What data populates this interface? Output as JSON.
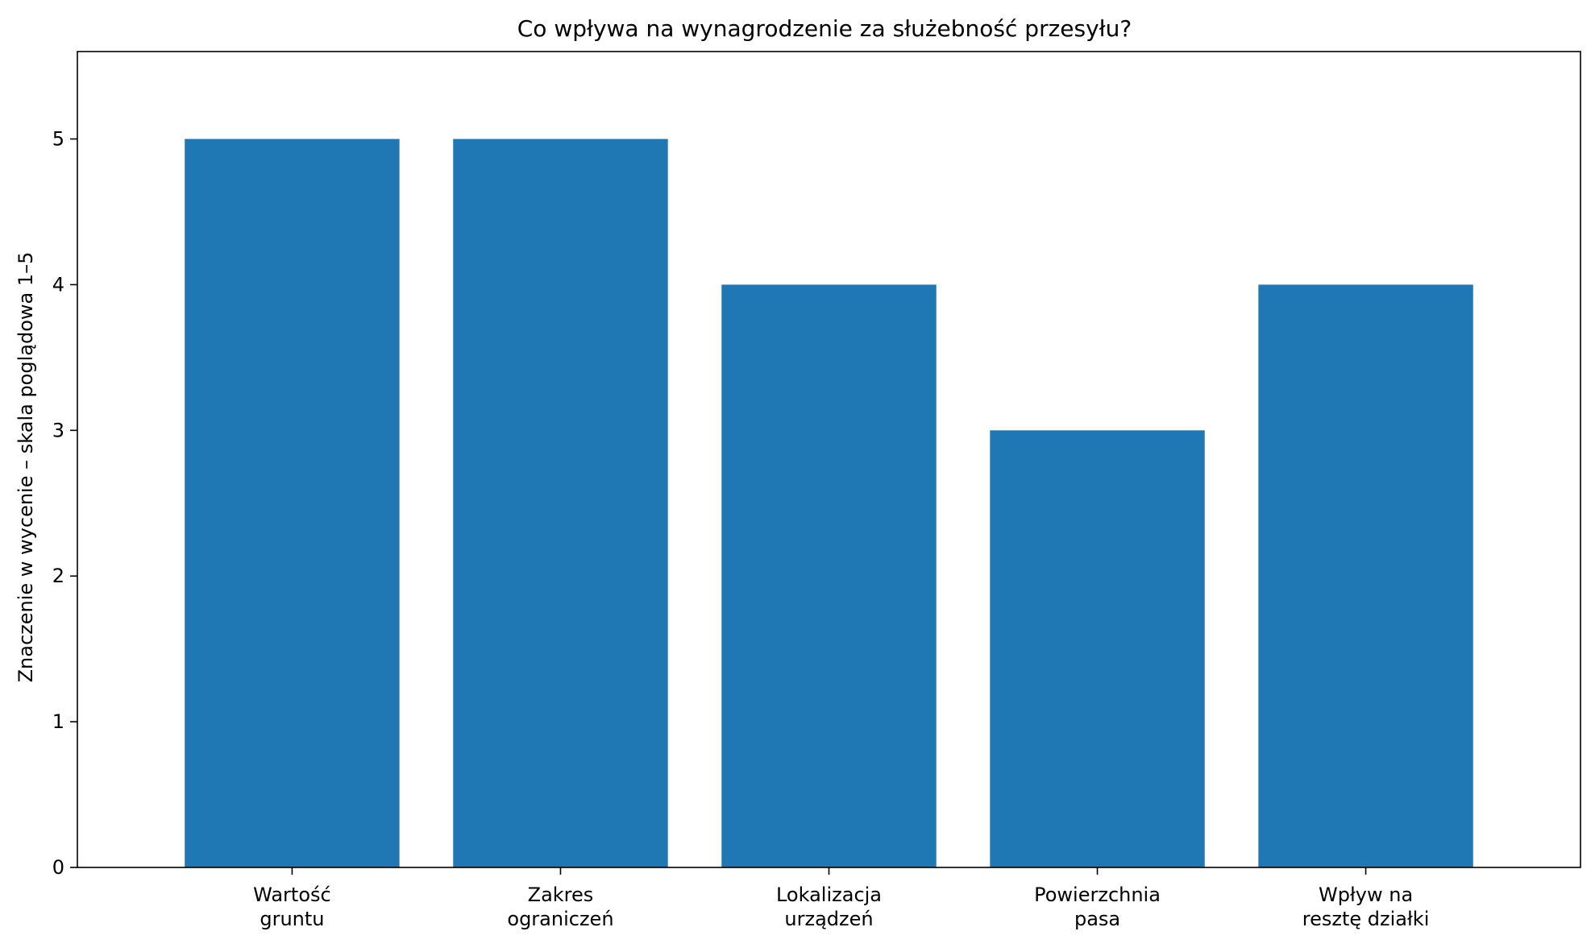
{
  "chart_data": {
    "type": "bar",
    "title": "Co wpływa na wynagrodzenie za służebność przesyłu?",
    "xlabel": "",
    "ylabel": "Znaczenie w wycenie – skala poglądowa 1–5",
    "categories": [
      [
        "Wartość",
        "gruntu"
      ],
      [
        "Zakres",
        "ograniczeń"
      ],
      [
        "Lokalizacja",
        "urządzeń"
      ],
      [
        "Powierzchnia",
        "pasa"
      ],
      [
        "Wpływ na",
        "resztę działki"
      ]
    ],
    "values": [
      5,
      5,
      4,
      3,
      4
    ],
    "ylim": [
      0,
      5.6
    ],
    "yticks": [
      0,
      1,
      2,
      3,
      4,
      5
    ],
    "grid": false,
    "legend": null,
    "bar_color": "#1f77b4"
  }
}
